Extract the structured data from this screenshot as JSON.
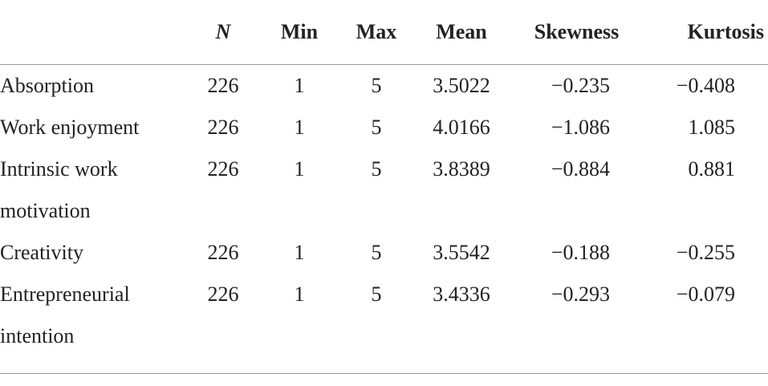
{
  "table": {
    "columns": [
      "",
      "N",
      "Min",
      "Max",
      "Mean",
      "Skewness",
      "Kurtosis"
    ],
    "rows": [
      [
        "Absorption",
        "226",
        "1",
        "5",
        "3.5022",
        "−0.235",
        "−0.408"
      ],
      [
        "Work enjoyment",
        "226",
        "1",
        "5",
        "4.0166",
        "−1.086",
        "1.085"
      ],
      [
        "Intrinsic work motivation",
        "226",
        "1",
        "5",
        "3.8389",
        "−0.884",
        "0.881"
      ],
      [
        "Creativity",
        "226",
        "1",
        "5",
        "3.5542",
        "−0.188",
        "−0.255"
      ],
      [
        "Entrepreneurial intention",
        "226",
        "1",
        "5",
        "3.4336",
        "−0.293",
        "−0.079"
      ]
    ]
  }
}
